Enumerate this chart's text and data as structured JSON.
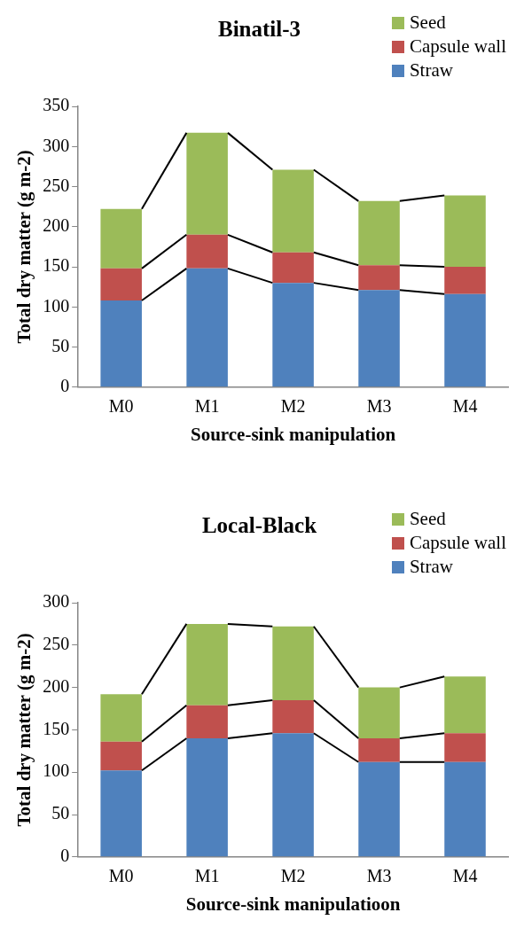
{
  "chart_data": [
    {
      "type": "bar",
      "title": "Binatil-3",
      "xlabel": "Source-sink manipulation",
      "ylabel": "Total dry matter (g m-2)",
      "categories": [
        "M0",
        "M1",
        "M2",
        "M3",
        "M4"
      ],
      "stacked": true,
      "legend": "top right",
      "ylim": [
        0,
        350
      ],
      "yticks": [
        0,
        50,
        100,
        150,
        200,
        250,
        300,
        350
      ],
      "series": [
        {
          "name": "Straw",
          "color": "#4f81bd",
          "values": [
            108,
            148,
            130,
            121,
            116
          ]
        },
        {
          "name": "Capsule wall",
          "color": "#c0504d",
          "values": [
            40,
            42,
            38,
            31,
            34
          ]
        },
        {
          "name": "Seed",
          "color": "#9bbb59",
          "values": [
            74,
            127,
            103,
            80,
            89
          ]
        }
      ]
    },
    {
      "type": "bar",
      "title": "Local-Black",
      "xlabel": "Source-sink manipulatioon",
      "ylabel": "Total dry matter (g m-2)",
      "categories": [
        "M0",
        "M1",
        "M2",
        "M3",
        "M4"
      ],
      "stacked": true,
      "legend": "top right",
      "ylim": [
        0,
        300
      ],
      "yticks": [
        0,
        50,
        100,
        150,
        200,
        250,
        300
      ],
      "series": [
        {
          "name": "Straw",
          "color": "#4f81bd",
          "values": [
            102,
            140,
            146,
            112,
            112
          ]
        },
        {
          "name": "Capsule wall",
          "color": "#c0504d",
          "values": [
            34,
            39,
            39,
            28,
            34
          ]
        },
        {
          "name": "Seed",
          "color": "#9bbb59",
          "values": [
            56,
            96,
            87,
            60,
            67
          ]
        }
      ]
    }
  ]
}
